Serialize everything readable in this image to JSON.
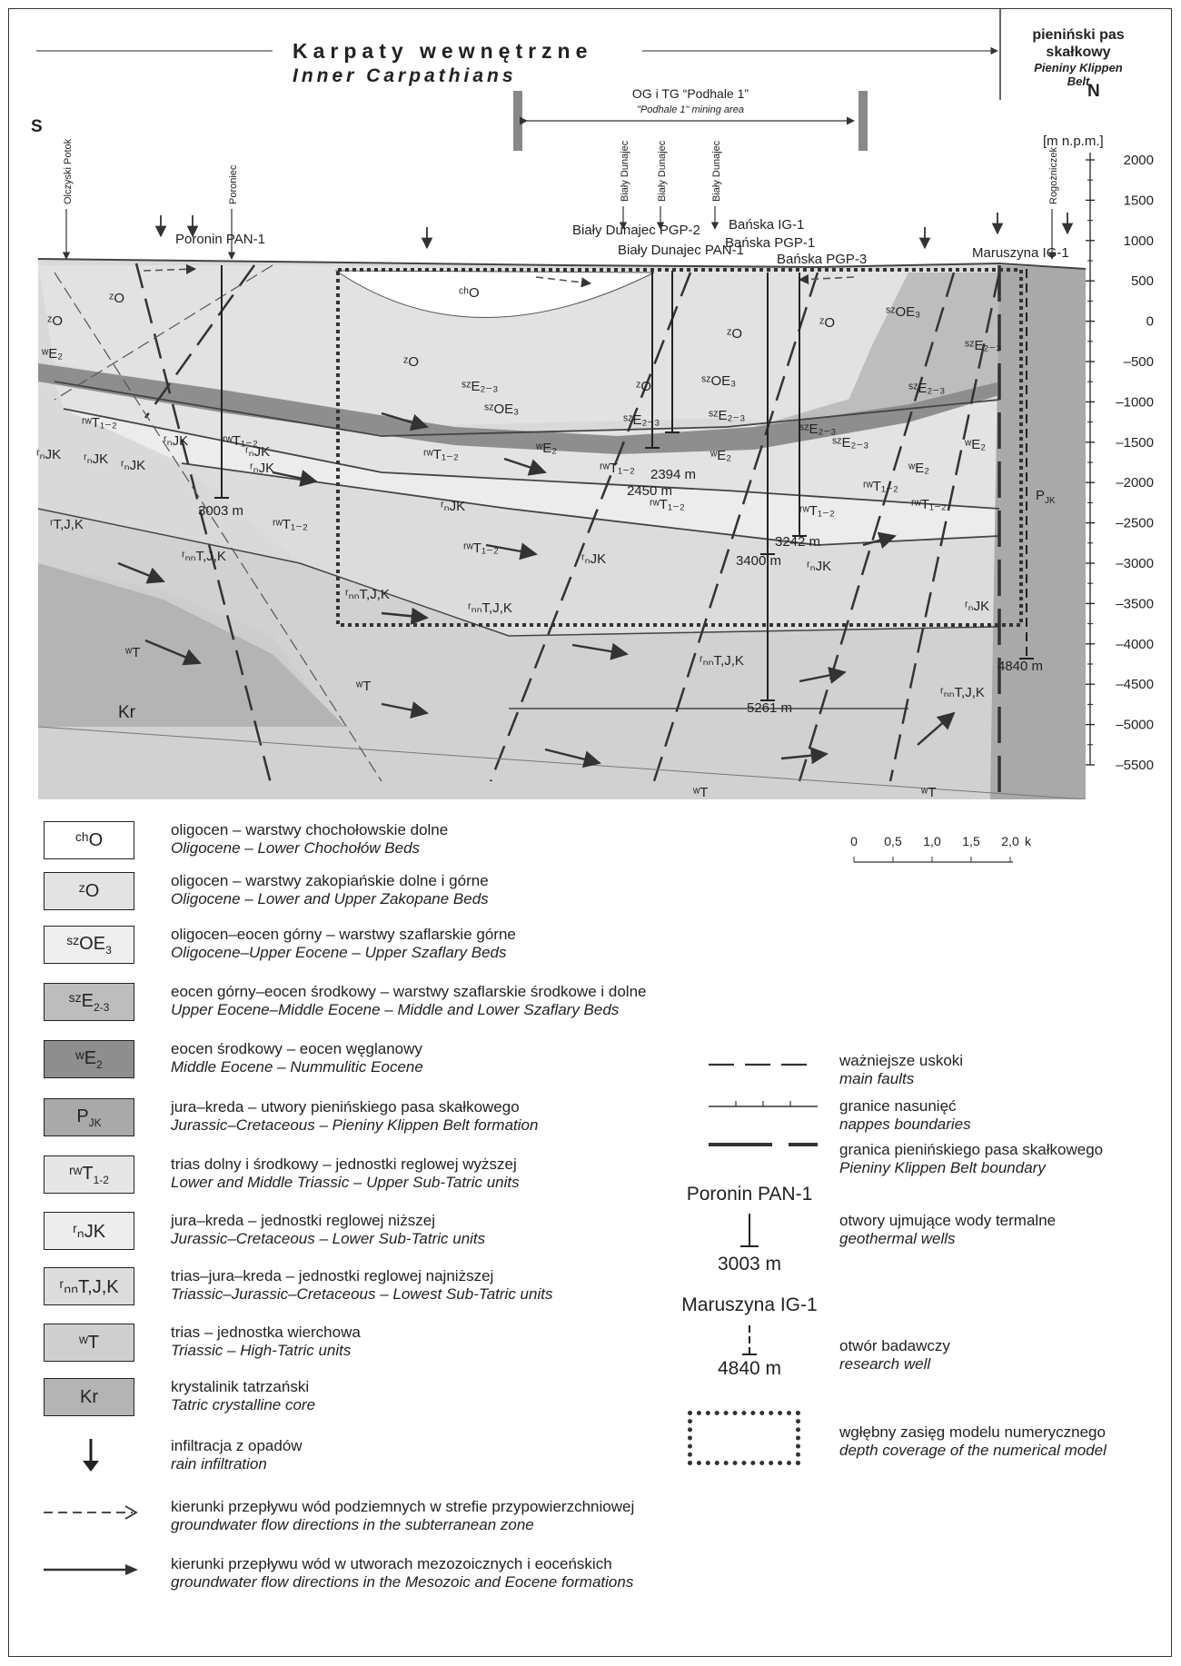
{
  "header": {
    "inner_pl": "Karpaty wewnętrzne",
    "inner_en": "Inner Carpathians",
    "pkb_pl": "pieniński pas skałkowy",
    "pkb_en": "Pieniny Klippen Belt",
    "mining_pl": "OG i TG “Podhale 1”",
    "mining_en": "\"Podhale 1\" mining area",
    "south": "S",
    "north": "N"
  },
  "axis": {
    "unit": "[m n.p.m.]",
    "ticks": [
      "2000",
      "1500",
      "1000",
      "500",
      "0",
      "–500",
      "–1000",
      "–1500",
      "–2000",
      "–2500",
      "–3000",
      "–3500",
      "–4000",
      "–4500",
      "–5000",
      "–5500"
    ]
  },
  "section_labels": {
    "rivers": [
      "Olczyski Potok",
      "Poroniec",
      "Biały Dunajec",
      "Biały Dunajec",
      "Biały Dunajec",
      "Rogożniczek"
    ],
    "wells": [
      "Poronin PAN-1",
      "Biały Dunajec PGP-2",
      "Biały Dunajec PAN-1",
      "Bańska IG-1",
      "Bańska PGP-1",
      "Bańska PGP-3",
      "Maruszyna IG-1"
    ],
    "depths": [
      "3003 m",
      "2394 m",
      "2450 m",
      "3242 m",
      "3400 m",
      "5261 m",
      "4840 m"
    ],
    "units": [
      "chO",
      "zO",
      "szOE3",
      "szE2-3",
      "wE2",
      "PJK",
      "rwT1-2",
      "rnJK",
      "rnnT,J,K",
      "wT",
      "Kr",
      "rT,J,K"
    ]
  },
  "legend_left": [
    {
      "symbol": "chO",
      "pl": "oligocen – warstwy chochołowskie dolne",
      "en": "Oligocene – Lower Chochołów Beds",
      "color": "#ffffff"
    },
    {
      "symbol": "zO",
      "pl": "oligocen – warstwy zakopiańskie dolne i górne",
      "en": "Oligocene – Lower and Upper Zakopane Beds",
      "color": "#e3e3e3"
    },
    {
      "symbol": "szOE3",
      "pl": "oligocen–eocen górny – warstwy szaflarskie górne",
      "en": "Oligocene–Upper Eocene – Upper Szaflary Beds",
      "color": "#efefef"
    },
    {
      "symbol": "szE2-3",
      "pl": "eocen górny–eocen środkowy – warstwy szaflarskie środkowe i dolne",
      "en": "Upper Eocene–Middle Eocene – Middle and Lower Szaflary Beds",
      "color": "#bdbdbd"
    },
    {
      "symbol": "wE2",
      "pl": "eocen środkowy – eocen węglanowy",
      "en": "Middle Eocene – Nummulitic Eocene",
      "color": "#8e8e8e"
    },
    {
      "symbol": "PJK",
      "pl": "jura–kreda – utwory pienińskiego pasa skałkowego",
      "en": "Jurassic–Cretaceous – Pieniny Klippen Belt formation",
      "color": "#a9a9a9"
    },
    {
      "symbol": "rwT1-2",
      "pl": "trias dolny i środkowy – jednostki reglowej wyższej",
      "en": "Lower and Middle Triassic – Upper Sub-Tatric units",
      "color": "#e6e6e6"
    },
    {
      "symbol": "rnJK",
      "pl": "jura–kreda – jednostki reglowej niższej",
      "en": "Jurassic–Cretaceous – Lower Sub-Tatric units",
      "color": "#ededed"
    },
    {
      "symbol": "rnnT,J,K",
      "pl": "trias–jura–kreda – jednostki reglowej najniższej",
      "en": "Triassic–Jurassic–Cretaceous – Lowest Sub-Tatric units",
      "color": "#dcdcdc"
    },
    {
      "symbol": "wT",
      "pl": "trias – jednostka wierchowa",
      "en": "Triassic – High-Tatric units",
      "color": "#cfcfcf"
    },
    {
      "symbol": "Kr",
      "pl": "krystalinik tatrzański",
      "en": "Tatric crystalline core",
      "color": "#b4b4b4"
    },
    {
      "symbol": "rain",
      "pl": "infiltracja z opadów",
      "en": "rain infiltration",
      "color": ""
    },
    {
      "symbol": "dashed-arrow",
      "pl": "kierunki przepływu wód podziemnych w strefie przypowierzchniowej",
      "en": "groundwater flow directions in the subterranean zone",
      "color": ""
    },
    {
      "symbol": "solid-arrow",
      "pl": "kierunki przepływu wód w utworach mezozoicznych i eoceńskich",
      "en": "groundwater flow directions in the Mesozoic and Eocene formations",
      "color": ""
    }
  ],
  "legend_right": [
    {
      "pl": "ważniejsze uskoki",
      "en": "main faults"
    },
    {
      "pl": "granice nasunięć",
      "en": "nappes  boundaries"
    },
    {
      "pl": "granica pienińskiego pasa skałkowego",
      "en": "Pieniny Klippen Belt boundary"
    },
    {
      "pl": "otwory ujmujące wody termalne",
      "en": "geothermal wells"
    },
    {
      "pl": "otwór badawczy",
      "en": "research well"
    },
    {
      "pl": "wgłębny zasięg modelu numerycznego",
      "en": "depth coverage of the numerical model"
    }
  ],
  "legend_samples": {
    "geo_well_name": "Poronin PAN-1",
    "geo_well_depth": "3003 m",
    "research_well_name": "Maruszyna IG-1",
    "research_well_depth": "4840 m"
  },
  "scale_bar": {
    "ticks": [
      "0",
      "0,5",
      "1,0",
      "1,5",
      "2,0"
    ],
    "unit": "km"
  }
}
